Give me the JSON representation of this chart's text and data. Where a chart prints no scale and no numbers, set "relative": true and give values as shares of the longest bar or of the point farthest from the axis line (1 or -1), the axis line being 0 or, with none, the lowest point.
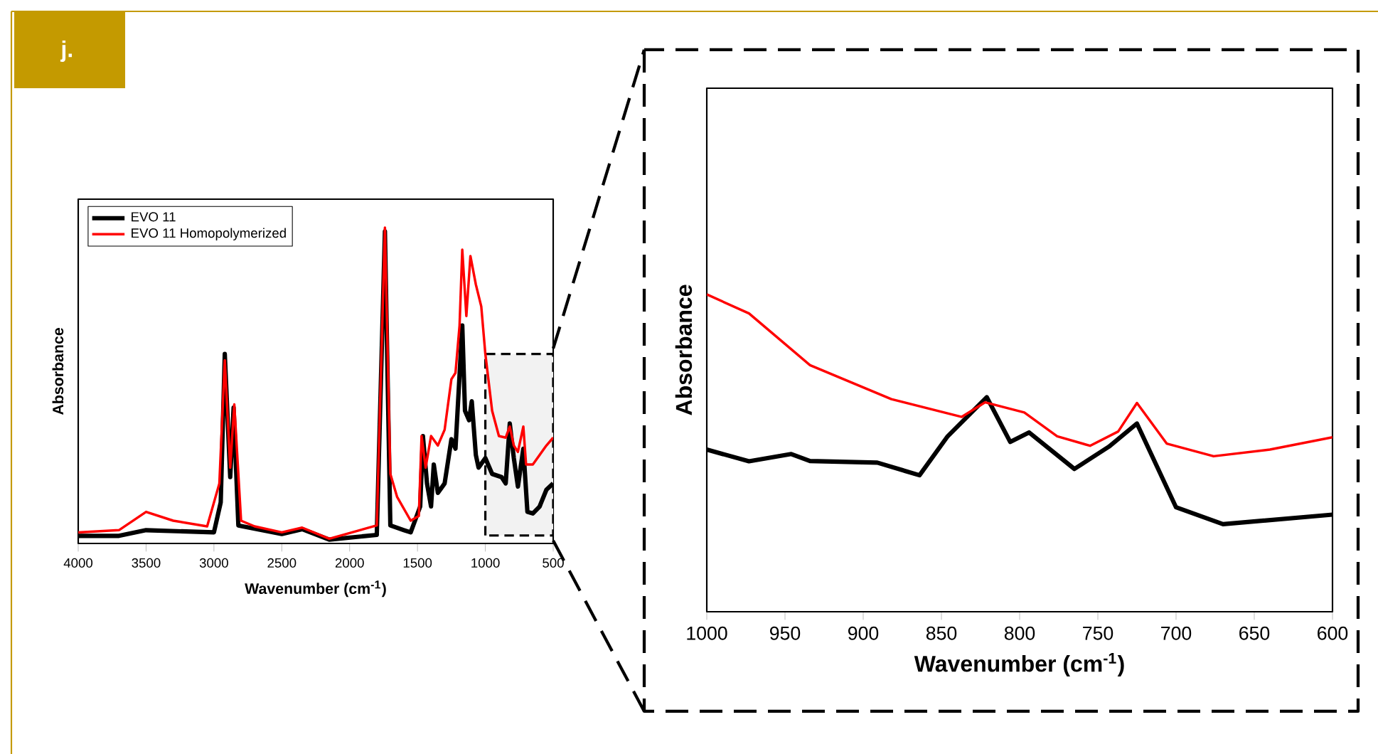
{
  "chart_data": [
    {
      "type": "line",
      "relative": true,
      "xlabel": "Wavenumber (cm$^{-1}$)",
      "ylabel": "Absorbance",
      "annotations": [
        "j."
      ],
      "xlim": [
        4000,
        500
      ],
      "xticks": [
        4000,
        3500,
        3000,
        2500,
        2000,
        1500,
        1000,
        500
      ],
      "legend": "top left",
      "bands": [
        {
          "axis": "x",
          "from": 1000,
          "to": 500,
          "color": "#f2f2f2"
        }
      ],
      "series": [
        {
          "name": "EVO 11",
          "color": "#000000",
          "x": [
            4000,
            3700,
            3500,
            3000,
            2950,
            2920,
            2880,
            2855,
            2820,
            2500,
            2350,
            2150,
            1800,
            1740,
            1700,
            1600,
            1550,
            1480,
            1460,
            1430,
            1400,
            1380,
            1350,
            1300,
            1250,
            1220,
            1170,
            1150,
            1120,
            1100,
            1070,
            1050,
            1000,
            950,
            880,
            850,
            820,
            790,
            760,
            720,
            690,
            650,
            600,
            550,
            500
          ],
          "values": [
            0.024,
            0.024,
            0.042,
            0.035,
            0.13,
            0.6,
            0.21,
            0.43,
            0.057,
            0.03,
            0.045,
            0.012,
            0.027,
            0.988,
            0.057,
            0.042,
            0.035,
            0.117,
            0.34,
            0.19,
            0.117,
            0.25,
            0.16,
            0.19,
            0.33,
            0.3,
            0.69,
            0.42,
            0.39,
            0.45,
            0.28,
            0.24,
            0.27,
            0.22,
            0.21,
            0.19,
            0.38,
            0.27,
            0.18,
            0.3,
            0.1,
            0.095,
            0.117,
            0.17,
            0.19
          ]
        },
        {
          "name": "EVO 11 Homopolymerized",
          "color": "#ff0000",
          "x": [
            4000,
            3700,
            3500,
            3300,
            3050,
            2960,
            2920,
            2880,
            2850,
            2800,
            2700,
            2500,
            2350,
            2150,
            2000,
            1800,
            1740,
            1700,
            1650,
            1550,
            1490,
            1470,
            1440,
            1400,
            1350,
            1300,
            1250,
            1220,
            1190,
            1170,
            1140,
            1110,
            1070,
            1030,
            1000,
            950,
            900,
            850,
            820,
            790,
            760,
            720,
            700,
            650,
            550,
            500
          ],
          "values": [
            0.035,
            0.042,
            0.1,
            0.072,
            0.054,
            0.19,
            0.58,
            0.24,
            0.44,
            0.072,
            0.054,
            0.035,
            0.05,
            0.015,
            0.033,
            0.057,
            1.0,
            0.22,
            0.147,
            0.072,
            0.087,
            0.34,
            0.24,
            0.34,
            0.31,
            0.36,
            0.52,
            0.54,
            0.69,
            0.93,
            0.72,
            0.91,
            0.82,
            0.75,
            0.6,
            0.42,
            0.34,
            0.335,
            0.37,
            0.31,
            0.29,
            0.37,
            0.25,
            0.25,
            0.31,
            0.335
          ]
        }
      ]
    },
    {
      "type": "line",
      "relative": true,
      "xlabel": "Wavenumber (cm$^{-1}$)",
      "ylabel": "Absorbance",
      "xlim": [
        1000,
        600
      ],
      "xticks": [
        1000,
        950,
        900,
        850,
        800,
        750,
        700,
        650,
        600
      ],
      "series": [
        {
          "color": "#000000",
          "x": [
            1000,
            973,
            946,
            934,
            891,
            864,
            846,
            821,
            806,
            794,
            765,
            743,
            725,
            700,
            670,
            600
          ],
          "values": [
            0.511,
            0.474,
            0.497,
            0.475,
            0.47,
            0.43,
            0.553,
            0.676,
            0.535,
            0.565,
            0.45,
            0.52,
            0.593,
            0.329,
            0.276,
            0.306
          ]
        },
        {
          "color": "#ff0000",
          "x": [
            1000,
            973,
            934,
            882,
            837,
            822,
            797,
            776,
            755,
            737,
            725,
            706,
            676,
            640,
            600
          ],
          "values": [
            1.0,
            0.94,
            0.777,
            0.67,
            0.614,
            0.66,
            0.628,
            0.553,
            0.523,
            0.568,
            0.658,
            0.53,
            0.49,
            0.511,
            0.55
          ]
        }
      ]
    }
  ]
}
